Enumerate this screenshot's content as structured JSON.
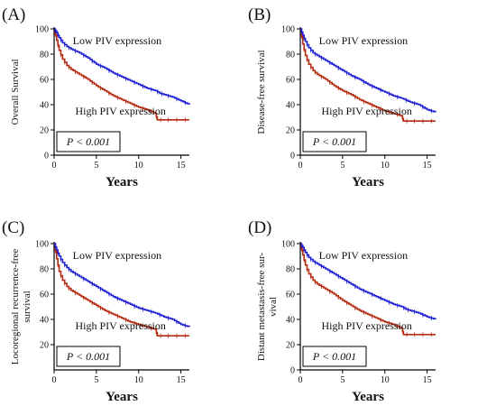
{
  "chart_data": [
    {
      "type": "line",
      "panel_label": "(A)",
      "ylabel": "Overall Survival",
      "xlabel": "Years",
      "xlim": [
        0,
        16
      ],
      "ylim": [
        0,
        100
      ],
      "xticks": [
        0,
        5,
        10,
        15
      ],
      "yticks": [
        0,
        20,
        40,
        60,
        80,
        100
      ],
      "annotation": "P < 0.001",
      "series": [
        {
          "name": "Low PIV expression",
          "color": "#1f1fd6",
          "x": [
            0,
            0.3,
            0.6,
            1,
            1.5,
            2,
            3,
            4,
            5,
            6,
            7,
            8,
            9,
            10,
            11,
            12,
            12.5,
            13,
            14,
            15,
            16
          ],
          "y": [
            100,
            97,
            93,
            89,
            86,
            84,
            81,
            77,
            72,
            69,
            65,
            62,
            59,
            56,
            53,
            51,
            49,
            48,
            46,
            43,
            40
          ]
        },
        {
          "name": "High PIV expression",
          "color": "#b52a10",
          "x": [
            0,
            0.3,
            0.6,
            1,
            1.5,
            2,
            3,
            4,
            5,
            6,
            7,
            8,
            9,
            10,
            11,
            12,
            12.2,
            13,
            14,
            15,
            16
          ],
          "y": [
            100,
            91,
            83,
            76,
            71,
            68,
            64,
            60,
            55,
            51,
            47,
            44,
            41,
            38,
            36,
            33,
            28,
            28,
            28,
            28,
            28
          ]
        }
      ]
    },
    {
      "type": "line",
      "panel_label": "(B)",
      "ylabel": "Disease-free survival",
      "xlabel": "Years",
      "xlim": [
        0,
        16
      ],
      "ylim": [
        0,
        100
      ],
      "xticks": [
        0,
        5,
        10,
        15
      ],
      "yticks": [
        0,
        20,
        40,
        60,
        80,
        100
      ],
      "annotation": "P < 0.001",
      "series": [
        {
          "name": "Low PIV expression",
          "color": "#1f1fd6",
          "x": [
            0,
            0.3,
            0.6,
            1,
            1.5,
            2,
            3,
            4,
            5,
            6,
            7,
            8,
            9,
            10,
            11,
            12,
            13,
            14,
            15,
            16
          ],
          "y": [
            100,
            95,
            90,
            85,
            81,
            79,
            75,
            71,
            67,
            63,
            60,
            56,
            53,
            50,
            47,
            45,
            42,
            40,
            36,
            34
          ]
        },
        {
          "name": "High PIV expression",
          "color": "#b52a10",
          "x": [
            0,
            0.3,
            0.6,
            1,
            1.5,
            2,
            3,
            4,
            5,
            6,
            7,
            8,
            9,
            10,
            11,
            12,
            12.2,
            13,
            14,
            15,
            16
          ],
          "y": [
            100,
            88,
            79,
            72,
            67,
            64,
            60,
            55,
            51,
            48,
            44,
            41,
            38,
            35,
            33,
            31,
            27,
            27,
            27,
            27,
            27
          ]
        }
      ]
    },
    {
      "type": "line",
      "panel_label": "(C)",
      "ylabel": "Locoregional recurrence-free survival",
      "xlabel": "Years",
      "xlim": [
        0,
        16
      ],
      "ylim": [
        0,
        100
      ],
      "xticks": [
        0,
        5,
        10,
        15
      ],
      "yticks": [
        20,
        40,
        60,
        80,
        100
      ],
      "annotation": "P < 0.001",
      "series": [
        {
          "name": "Low PIV expression",
          "color": "#1f1fd6",
          "x": [
            0,
            0.3,
            0.6,
            1,
            1.5,
            2,
            3,
            4,
            5,
            6,
            7,
            8,
            9,
            10,
            11,
            12,
            13,
            14,
            15,
            16
          ],
          "y": [
            100,
            95,
            90,
            85,
            81,
            78,
            74,
            70,
            66,
            62,
            58,
            55,
            52,
            49,
            47,
            45,
            42,
            40,
            36,
            34
          ]
        },
        {
          "name": "High PIV expression",
          "color": "#b52a10",
          "x": [
            0,
            0.3,
            0.6,
            1,
            1.5,
            2,
            3,
            4,
            5,
            6,
            7,
            8,
            9,
            10,
            11,
            12,
            12.2,
            13,
            14,
            15,
            16
          ],
          "y": [
            100,
            88,
            78,
            71,
            66,
            63,
            59,
            55,
            51,
            47,
            44,
            41,
            38,
            36,
            34,
            32,
            27,
            27,
            27,
            27,
            27
          ]
        }
      ]
    },
    {
      "type": "line",
      "panel_label": "(D)",
      "ylabel": "Distant metastasis-free survival",
      "xlabel": "Years",
      "xlim": [
        0,
        16
      ],
      "ylim": [
        0,
        100
      ],
      "xticks": [
        0,
        5,
        10,
        15
      ],
      "yticks": [
        0,
        20,
        40,
        60,
        80,
        100
      ],
      "annotation": "P < 0.001",
      "series": [
        {
          "name": "Low PIV expression",
          "color": "#1f1fd6",
          "x": [
            0,
            0.3,
            0.6,
            1,
            1.5,
            2,
            3,
            4,
            5,
            6,
            7,
            8,
            9,
            10,
            11,
            12,
            12.5,
            13,
            14,
            15,
            16
          ],
          "y": [
            100,
            97,
            93,
            89,
            86,
            84,
            80,
            76,
            72,
            68,
            64,
            61,
            58,
            55,
            52,
            50,
            48,
            47,
            45,
            42,
            40
          ]
        },
        {
          "name": "High PIV expression",
          "color": "#b52a10",
          "x": [
            0,
            0.3,
            0.6,
            1,
            1.5,
            2,
            3,
            4,
            5,
            6,
            7,
            8,
            9,
            10,
            11,
            12,
            12.2,
            13,
            14,
            15,
            16
          ],
          "y": [
            100,
            91,
            83,
            76,
            71,
            68,
            64,
            60,
            55,
            51,
            47,
            44,
            41,
            38,
            36,
            33,
            28,
            28,
            28,
            28,
            28
          ]
        }
      ]
    }
  ]
}
